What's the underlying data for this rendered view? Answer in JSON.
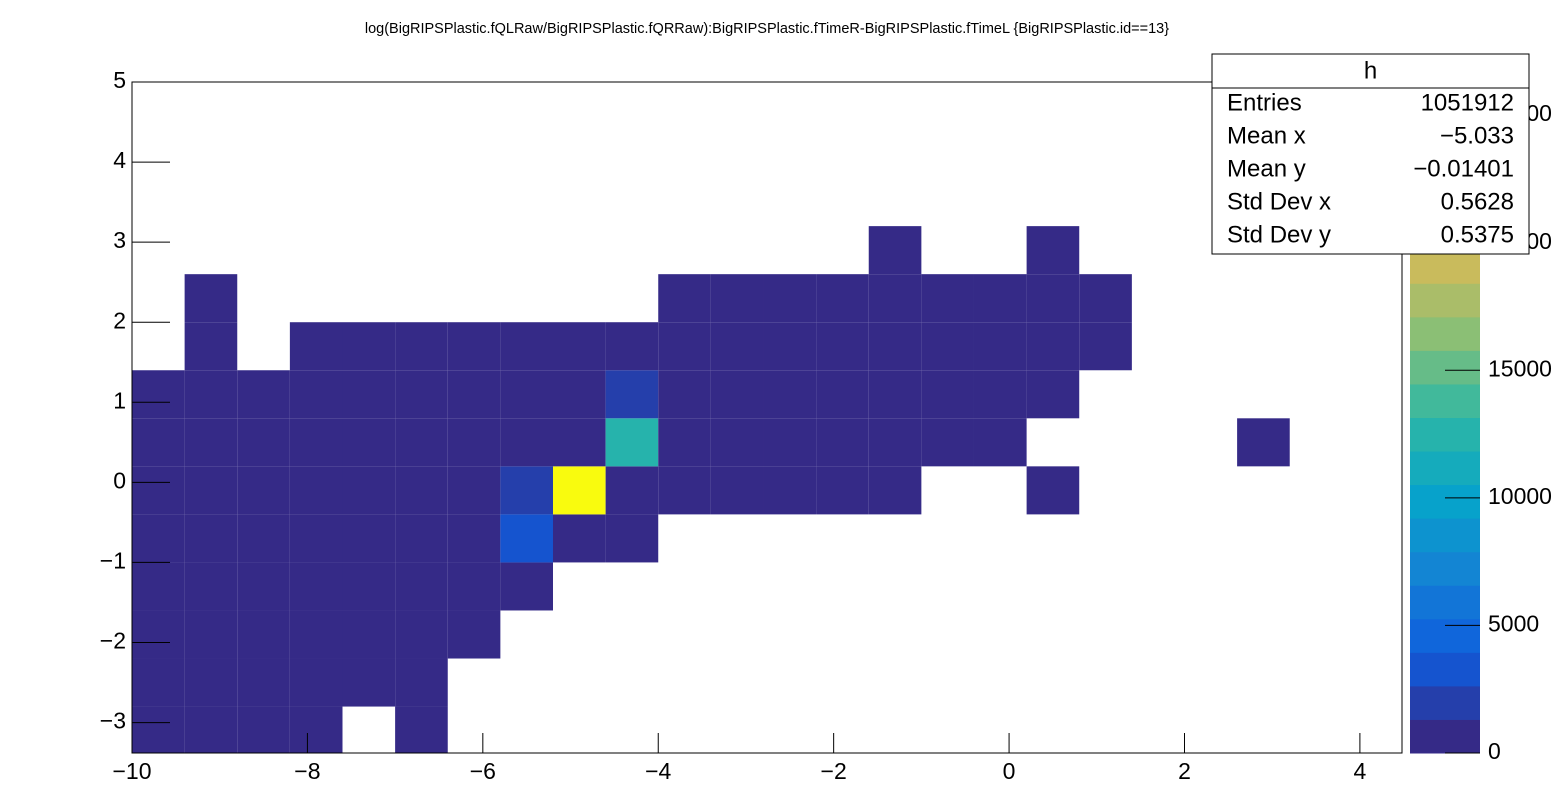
{
  "chart_data": {
    "type": "heatmap",
    "title": "log(BigRIPSPlastic.fQLRaw/BigRIPSPlastic.fQRRaw):BigRIPSPlastic.fTimeR-BigRIPSPlastic.fTimeL {BigRIPSPlastic.id==13}",
    "xlim": [
      -10,
      4.48
    ],
    "ylim": [
      -3.38,
      5
    ],
    "zlim": [
      0,
      26300
    ],
    "xticks": [
      {
        "value": -10,
        "label": "−10"
      },
      {
        "value": -8,
        "label": "−8"
      },
      {
        "value": -6,
        "label": "−6"
      },
      {
        "value": -4,
        "label": "−4"
      },
      {
        "value": -2,
        "label": "−2"
      },
      0,
      2,
      4
    ],
    "yticks": [
      {
        "value": -3,
        "label": "−3"
      },
      {
        "value": -2,
        "label": "−2"
      },
      {
        "value": -1,
        "label": "−1"
      },
      0,
      1,
      2,
      3,
      4,
      5
    ],
    "zticks": [
      0,
      5000,
      10000,
      15000,
      20000,
      25000
    ],
    "palette": [
      "#352a87",
      "#0f5cdd",
      "#1481d4",
      "#06a4ca",
      "#2eb7a4",
      "#87bf77",
      "#d1bb59",
      "#fec832",
      "#f9fb0e"
    ],
    "xbins": [
      -10,
      -9.4,
      -8.8,
      -8.2,
      -7.6,
      -7.0,
      -6.4,
      -5.8,
      -5.2,
      -4.6,
      -4.0,
      -3.4,
      -2.8,
      -2.2,
      -1.6,
      -1.0,
      -0.4,
      0.2,
      0.8,
      1.4,
      2.0,
      2.6,
      3.2,
      3.8,
      4.4
    ],
    "ybins": [
      -3.4,
      -2.8,
      -2.2,
      -1.6,
      -1.0,
      -0.4,
      0.2,
      0.8,
      1.4,
      2.0,
      2.6,
      3.2,
      3.8,
      4.4,
      5.0
    ],
    "z": [
      [
        300,
        200,
        150,
        50,
        0,
        20,
        0,
        0,
        0,
        0,
        0,
        0,
        0,
        0,
        0,
        0,
        0,
        0,
        0,
        0,
        0,
        0,
        0,
        0
      ],
      [
        500,
        400,
        300,
        200,
        100,
        50,
        0,
        0,
        0,
        0,
        0,
        0,
        0,
        0,
        0,
        0,
        0,
        0,
        0,
        0,
        0,
        0,
        0,
        0
      ],
      [
        800,
        700,
        600,
        500,
        400,
        300,
        200,
        0,
        0,
        0,
        0,
        0,
        0,
        0,
        0,
        0,
        0,
        0,
        0,
        0,
        0,
        0,
        0,
        0
      ],
      [
        900,
        900,
        900,
        800,
        700,
        600,
        500,
        800,
        0,
        0,
        0,
        0,
        0,
        0,
        0,
        0,
        0,
        0,
        0,
        0,
        0,
        0,
        0,
        0
      ],
      [
        900,
        900,
        900,
        900,
        800,
        800,
        700,
        3000,
        600,
        100,
        0,
        0,
        0,
        0,
        0,
        0,
        0,
        0,
        0,
        0,
        0,
        0,
        0,
        0
      ],
      [
        800,
        900,
        900,
        900,
        900,
        900,
        800,
        2000,
        26000,
        800,
        300,
        200,
        150,
        100,
        50,
        0,
        0,
        30,
        0,
        0,
        0,
        0,
        0,
        0
      ],
      [
        300,
        200,
        150,
        100,
        100,
        100,
        150,
        300,
        800,
        12000,
        900,
        900,
        900,
        900,
        800,
        700,
        300,
        0,
        0,
        0,
        0,
        10,
        0,
        0
      ],
      [
        100,
        50,
        50,
        30,
        30,
        30,
        50,
        100,
        300,
        2000,
        900,
        900,
        900,
        800,
        800,
        600,
        200,
        50,
        0,
        0,
        0,
        0,
        0,
        0
      ],
      [
        0,
        30,
        0,
        20,
        20,
        20,
        30,
        40,
        80,
        400,
        700,
        500,
        400,
        300,
        300,
        300,
        200,
        100,
        50,
        0,
        0,
        0,
        0,
        0
      ],
      [
        0,
        20,
        0,
        0,
        0,
        0,
        0,
        0,
        0,
        0,
        300,
        300,
        100,
        100,
        100,
        80,
        60,
        50,
        30,
        0,
        0,
        0,
        0,
        0
      ],
      [
        0,
        0,
        0,
        0,
        0,
        0,
        0,
        0,
        0,
        0,
        0,
        0,
        0,
        0,
        30,
        0,
        0,
        10,
        0,
        0,
        0,
        0,
        0,
        0
      ],
      [
        0,
        0,
        0,
        0,
        0,
        0,
        0,
        0,
        0,
        0,
        0,
        0,
        0,
        0,
        0,
        0,
        0,
        0,
        0,
        0,
        0,
        0,
        0,
        0
      ],
      [
        0,
        0,
        0,
        0,
        0,
        0,
        0,
        0,
        0,
        0,
        0,
        0,
        0,
        0,
        0,
        0,
        0,
        0,
        0,
        0,
        0,
        0,
        0,
        0
      ],
      [
        0,
        0,
        0,
        0,
        0,
        0,
        0,
        0,
        0,
        0,
        0,
        0,
        0,
        0,
        0,
        0,
        0,
        0,
        0,
        0,
        0,
        0,
        0,
        0
      ]
    ],
    "stats": {
      "name": "h",
      "rows": [
        {
          "label": "Entries",
          "value": "1051912"
        },
        {
          "label": "Mean x",
          "value": "−5.033"
        },
        {
          "label": "Mean y",
          "value": "−0.01401"
        },
        {
          "label": "Std Dev x",
          "value": "0.5628"
        },
        {
          "label": "Std Dev y",
          "value": "0.5375"
        }
      ]
    }
  }
}
